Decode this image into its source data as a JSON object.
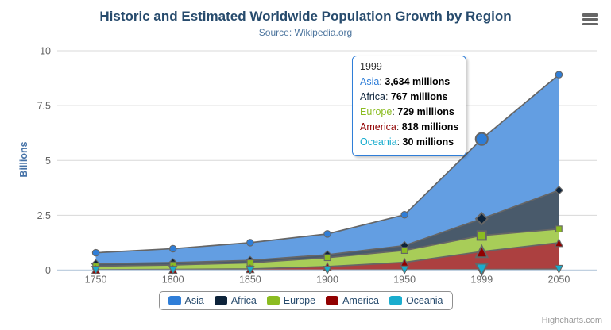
{
  "chart_data": {
    "type": "area",
    "stacking": "normal",
    "title": "Historic and Estimated Worldwide Population Growth by Region",
    "subtitle": "Source: Wikipedia.org",
    "xlabel": "",
    "ylabel": "Billions",
    "unit": "millions",
    "categories": [
      "1750",
      "1800",
      "1850",
      "1900",
      "1950",
      "1999",
      "2050"
    ],
    "series": [
      {
        "name": "Asia",
        "color": "#2f7ed8",
        "flat_fill": "#639ee2",
        "marker": "circle",
        "values": [
          502,
          635,
          809,
          947,
          1402,
          3634,
          5268
        ]
      },
      {
        "name": "Africa",
        "color": "#0d233a",
        "flat_fill": "#495a6b",
        "marker": "diamond",
        "values": [
          106,
          107,
          111,
          133,
          221,
          767,
          1766
        ]
      },
      {
        "name": "Europe",
        "color": "#8bbc21",
        "flat_fill": "#a8cd58",
        "marker": "square",
        "values": [
          163,
          203,
          276,
          408,
          547,
          729,
          628
        ]
      },
      {
        "name": "America",
        "color": "#910000",
        "flat_fill": "#ac4040",
        "marker": "triangle",
        "values": [
          18,
          31,
          54,
          156,
          339,
          818,
          1201
        ]
      },
      {
        "name": "Oceania",
        "color": "#1aadce",
        "flat_fill": "#53c1da",
        "marker": "triangle-down",
        "values": [
          2,
          2,
          2,
          6,
          13,
          30,
          46
        ]
      }
    ],
    "ylim": [
      0,
      10000
    ],
    "yticks": [
      {
        "label": "0",
        "value": 0
      },
      {
        "label": "2.5",
        "value": 2500
      },
      {
        "label": "5",
        "value": 5000
      },
      {
        "label": "7.5",
        "value": 7500
      },
      {
        "label": "10",
        "value": 10000
      }
    ],
    "grid": "on",
    "legend_position": "bottom",
    "hover_category_index": 5,
    "line_color": "#666666",
    "grid_color": "#d8d8d8",
    "axis_line_color": "#c0d0e0",
    "text_colors": {
      "title": "#274b6d",
      "subtitle": "#4d759e",
      "axis_label": "#666666",
      "axis_title": "#4572a7",
      "legend": "#274b6d"
    }
  },
  "tooltip": {
    "header": "1999",
    "rows": [
      {
        "name": "Asia",
        "color": "#2f7ed8",
        "value": "3,634 millions"
      },
      {
        "name": "Africa",
        "color": "#0d233a",
        "value": "767 millions"
      },
      {
        "name": "Europe",
        "color": "#8bbc21",
        "value": "729 millions"
      },
      {
        "name": "America",
        "color": "#910000",
        "value": "818 millions"
      },
      {
        "name": "Oceania",
        "color": "#1aadce",
        "value": "30 millions"
      }
    ]
  },
  "menu": {
    "icon": "hamburger-menu-icon"
  },
  "credits": {
    "label": "Highcharts.com"
  }
}
